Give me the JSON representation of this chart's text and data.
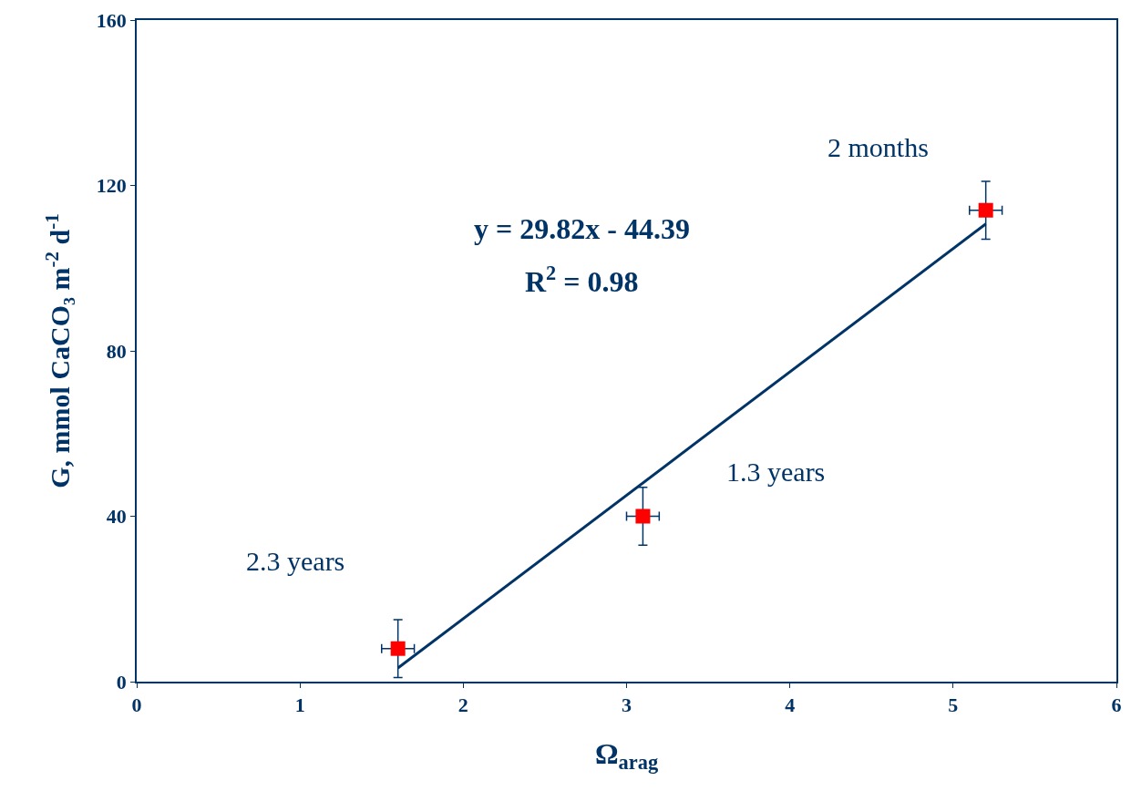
{
  "chart_data": {
    "type": "scatter",
    "xlabel": "Ω$_{arag}$",
    "ylabel": "G, mmol CaCO₃ m$^{-2}$ d$^{-1}$",
    "x": [
      1.6,
      3.1,
      5.2
    ],
    "series": [
      {
        "color": "#ff0000",
        "marker": "square",
        "values": [
          8,
          40,
          114
        ],
        "errors": [
          7,
          7,
          7
        ],
        "xerrors": [
          0.1,
          0.1,
          0.1
        ]
      },
      {
        "type": "line",
        "color": "#003366",
        "marker": "none",
        "line_style": "solid",
        "x": [
          1.6,
          5.2
        ],
        "values": [
          3.3,
          110.7
        ]
      }
    ],
    "annotations": [
      "y = 29.82x - 44.39",
      "R$^{2}$ = 0.98",
      "2 months",
      "1.3 years",
      "2.3 years"
    ],
    "xlim": [
      0,
      6
    ],
    "xticks": [
      0,
      1,
      2,
      3,
      4,
      5,
      6
    ],
    "ylim": [
      0,
      160
    ],
    "yticks": [
      0,
      40,
      80,
      120,
      160
    ]
  }
}
